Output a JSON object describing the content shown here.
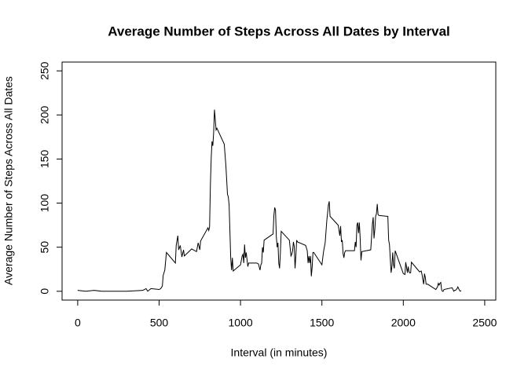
{
  "chart_data": {
    "type": "line",
    "title": "Average Number of Steps Across All Dates by Interval",
    "x_label": "Interval (in minutes)",
    "y_label": "Average Number of Steps Across All Dates",
    "x": [
      0,
      50,
      100,
      150,
      200,
      300,
      400,
      420,
      430,
      450,
      500,
      510,
      520,
      525,
      535,
      545,
      600,
      605,
      615,
      620,
      630,
      640,
      650,
      655,
      700,
      710,
      730,
      740,
      750,
      755,
      800,
      805,
      810,
      815,
      820,
      825,
      830,
      835,
      840,
      845,
      850,
      855,
      900,
      910,
      920,
      925,
      930,
      940,
      945,
      950,
      955,
      1000,
      1010,
      1015,
      1020,
      1025,
      1030,
      1035,
      1040,
      1045,
      1050,
      1100,
      1110,
      1120,
      1125,
      1130,
      1135,
      1140,
      1145,
      1200,
      1205,
      1210,
      1215,
      1220,
      1225,
      1230,
      1235,
      1240,
      1245,
      1250,
      1300,
      1310,
      1315,
      1320,
      1325,
      1330,
      1335,
      1340,
      1345,
      1350,
      1400,
      1410,
      1415,
      1420,
      1425,
      1430,
      1435,
      1440,
      1445,
      1450,
      1500,
      1510,
      1520,
      1530,
      1540,
      1545,
      1550,
      1600,
      1610,
      1615,
      1620,
      1625,
      1630,
      1635,
      1640,
      1645,
      1650,
      1700,
      1705,
      1710,
      1715,
      1720,
      1725,
      1730,
      1735,
      1740,
      1745,
      1800,
      1810,
      1815,
      1820,
      1825,
      1830,
      1835,
      1840,
      1845,
      1850,
      1900,
      1905,
      1910,
      1915,
      1920,
      1925,
      1930,
      1935,
      1940,
      1945,
      1950,
      2000,
      2010,
      2015,
      2020,
      2025,
      2030,
      2035,
      2040,
      2045,
      2050,
      2100,
      2110,
      2115,
      2120,
      2125,
      2130,
      2135,
      2140,
      2145,
      2150,
      2200,
      2210,
      2215,
      2220,
      2225,
      2230,
      2235,
      2240,
      2245,
      2250,
      2300,
      2310,
      2315,
      2320,
      2325,
      2330,
      2335,
      2340,
      2345,
      2350,
      2355
    ],
    "series": [
      {
        "color": "#000000",
        "values": [
          1,
          0,
          1,
          0,
          0,
          0,
          1,
          3,
          0,
          3,
          2,
          3,
          6,
          18,
          24,
          44,
          32,
          52,
          63,
          47,
          52,
          39,
          47,
          40,
          48,
          47,
          45,
          55,
          47,
          57,
          72,
          69,
          73,
          120,
          151,
          170,
          165,
          180,
          206,
          195,
          183,
          185,
          167,
          143,
          110,
          107,
          98,
          37,
          24,
          38,
          23,
          30,
          40,
          42,
          32,
          53,
          38,
          44,
          36,
          28,
          32,
          32,
          31,
          24,
          30,
          32,
          50,
          44,
          58,
          65,
          86,
          95,
          92,
          62,
          50,
          55,
          32,
          26,
          44,
          68,
          58,
          40,
          42,
          46,
          56,
          51,
          26,
          40,
          58,
          56,
          52,
          46,
          32,
          40,
          32,
          40,
          17,
          27,
          44,
          44,
          30,
          45,
          55,
          80,
          98,
          102,
          85,
          75,
          63,
          74,
          56,
          58,
          43,
          38,
          44,
          46,
          46,
          46,
          56,
          50,
          75,
          78,
          66,
          78,
          60,
          35,
          45,
          47,
          76,
          84,
          60,
          70,
          85,
          88,
          99,
          87,
          86,
          85,
          85,
          58,
          53,
          37,
          21,
          28,
          44,
          30,
          26,
          46,
          20,
          19,
          33,
          27,
          21,
          28,
          22,
          21,
          21,
          33,
          22,
          23,
          19,
          13,
          8,
          20,
          16,
          8,
          8,
          8,
          2,
          5,
          9,
          7,
          9,
          10,
          2,
          0,
          0,
          2,
          4,
          0,
          1,
          1,
          2,
          3,
          5,
          3,
          1,
          0,
          1
        ]
      }
    ],
    "xlim": [
      -96,
      2568
    ],
    "ylim": [
      -10,
      260
    ],
    "xticks": [
      0,
      500,
      1000,
      1500,
      2000,
      2500
    ],
    "yticks": [
      0,
      50,
      100,
      150,
      200,
      250
    ]
  }
}
